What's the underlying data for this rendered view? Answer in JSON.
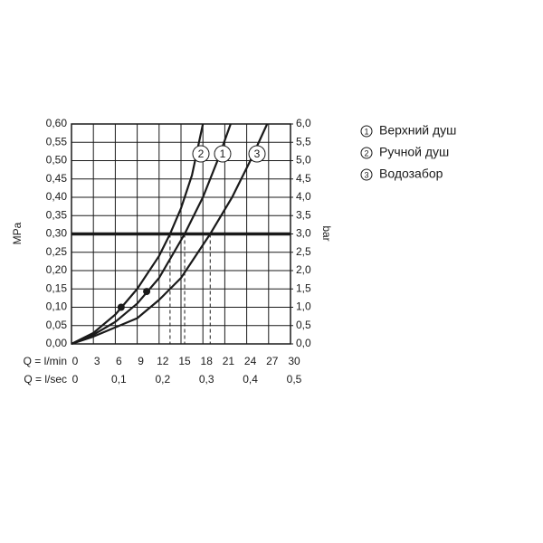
{
  "chart_data": {
    "type": "line",
    "y_label": "MPa",
    "y2_label": "bar",
    "x_label": "Q = l/min",
    "x2_label": "Q = l/sec",
    "xlim": [
      0,
      30
    ],
    "xticks": [
      0,
      3,
      6,
      9,
      12,
      15,
      18,
      21,
      24,
      27,
      30
    ],
    "x2lim": [
      0,
      0.5
    ],
    "x2ticks": [
      0,
      {
        "value": 0.1,
        "label": "0,1"
      },
      {
        "value": 0.2,
        "label": "0,2"
      },
      {
        "value": 0.3,
        "label": "0,3"
      },
      {
        "value": 0.4,
        "label": "0,4"
      },
      {
        "value": 0.5,
        "label": "0,5"
      }
    ],
    "ylim": [
      0,
      0.6
    ],
    "yticks": [
      {
        "value": 0,
        "label": "0,00"
      },
      {
        "value": 0.05,
        "label": "0,05"
      },
      {
        "value": 0.1,
        "label": "0,10"
      },
      {
        "value": 0.15,
        "label": "0,15"
      },
      {
        "value": 0.2,
        "label": "0,20"
      },
      {
        "value": 0.25,
        "label": "0,25"
      },
      {
        "value": 0.3,
        "label": "0,30"
      },
      {
        "value": 0.35,
        "label": "0,35"
      },
      {
        "value": 0.4,
        "label": "0,40"
      },
      {
        "value": 0.45,
        "label": "0,45"
      },
      {
        "value": 0.5,
        "label": "0,50"
      },
      {
        "value": 0.55,
        "label": "0,55"
      },
      {
        "value": 0.6,
        "label": "0,60"
      }
    ],
    "y2lim": [
      0,
      6
    ],
    "y2ticks": [
      {
        "value": 0,
        "label": "0,0"
      },
      {
        "value": 0.5,
        "label": "0,5"
      },
      {
        "value": 1,
        "label": "1,0"
      },
      {
        "value": 1.5,
        "label": "1,5"
      },
      {
        "value": 2,
        "label": "2,0"
      },
      {
        "value": 2.5,
        "label": "2,5"
      },
      {
        "value": 3,
        "label": "3,0"
      },
      {
        "value": 3.5,
        "label": "3,5"
      },
      {
        "value": 4,
        "label": "4,0"
      },
      {
        "value": 4.5,
        "label": "4,5"
      },
      {
        "value": 5,
        "label": "5,0"
      },
      {
        "value": 5.5,
        "label": "5,5"
      },
      {
        "value": 6,
        "label": "6,0"
      }
    ],
    "grid": true,
    "reference": {
      "y": 0.3,
      "x": [
        15.5,
        13.5,
        19
      ]
    },
    "series": [
      {
        "name": "Верхний душ",
        "label": "1",
        "color": "#1a1a1a",
        "x": [
          0,
          3,
          6,
          9,
          12,
          15.5,
          18,
          20,
          21.8
        ],
        "values": [
          0,
          0.025,
          0.06,
          0.11,
          0.18,
          0.3,
          0.4,
          0.5,
          0.6
        ]
      },
      {
        "name": "Ручной душ",
        "label": "2",
        "color": "#1a1a1a",
        "x": [
          0,
          3,
          6,
          9,
          12,
          13.5,
          15,
          16.5,
          18
        ],
        "values": [
          0,
          0.03,
          0.08,
          0.15,
          0.24,
          0.3,
          0.37,
          0.46,
          0.6
        ]
      },
      {
        "name": "Водозабор",
        "label": "3",
        "color": "#1a1a1a",
        "x": [
          0,
          3,
          6,
          9,
          12,
          15,
          19,
          22,
          24.5,
          26.8
        ],
        "values": [
          0,
          0.02,
          0.045,
          0.07,
          0.12,
          0.18,
          0.3,
          0.4,
          0.5,
          0.6
        ]
      }
    ],
    "points": {
      "x": [
        6.8,
        10.3
      ],
      "values": [
        0.1,
        0.143
      ]
    }
  }
}
